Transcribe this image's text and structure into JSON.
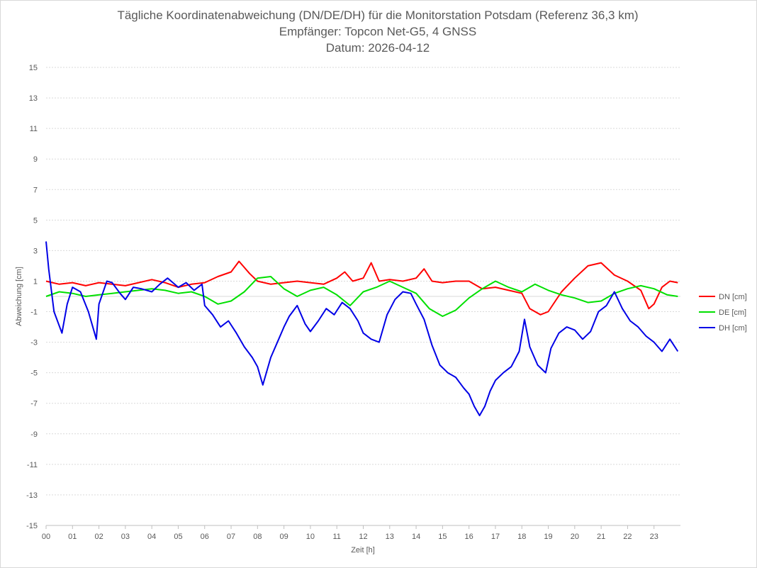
{
  "chart_data": {
    "type": "line",
    "title": "Tägliche Koordinatenabweichung (DN/DE/DH) für die Monitorstation Potsdam (Referenz 36,3 km)",
    "subtitle": "Empfänger: Topcon Net-G5, 4 GNSS",
    "subtitle2": "Datum: 2026-04-12",
    "xlabel": "Zeit [h]",
    "ylabel": "Abweichung [cm]",
    "xlim": [
      0,
      24
    ],
    "ylim": [
      -15,
      15
    ],
    "xticks": [
      "00",
      "01",
      "02",
      "03",
      "04",
      "05",
      "06",
      "07",
      "08",
      "09",
      "10",
      "11",
      "12",
      "13",
      "14",
      "15",
      "16",
      "17",
      "18",
      "19",
      "20",
      "21",
      "22",
      "23"
    ],
    "yticks": [
      15,
      13,
      11,
      9,
      7,
      5,
      3,
      1,
      -1,
      -3,
      -5,
      -7,
      -9,
      -11,
      -13,
      -15
    ],
    "grid": true,
    "legend": "right",
    "series": [
      {
        "name": "DN [cm]",
        "color": "#ff0000",
        "points": [
          [
            0,
            1.0
          ],
          [
            0.5,
            0.8
          ],
          [
            1,
            0.9
          ],
          [
            1.5,
            0.7
          ],
          [
            2,
            0.9
          ],
          [
            2.5,
            0.8
          ],
          [
            3,
            0.7
          ],
          [
            3.5,
            0.9
          ],
          [
            4,
            1.1
          ],
          [
            4.5,
            0.9
          ],
          [
            5,
            0.6
          ],
          [
            5.5,
            0.8
          ],
          [
            6,
            0.9
          ],
          [
            6.5,
            1.3
          ],
          [
            7,
            1.6
          ],
          [
            7.3,
            2.3
          ],
          [
            7.7,
            1.5
          ],
          [
            8,
            1.0
          ],
          [
            8.5,
            0.8
          ],
          [
            9,
            0.9
          ],
          [
            9.5,
            1.0
          ],
          [
            10,
            0.9
          ],
          [
            10.5,
            0.8
          ],
          [
            11,
            1.2
          ],
          [
            11.3,
            1.6
          ],
          [
            11.6,
            1.0
          ],
          [
            12,
            1.2
          ],
          [
            12.3,
            2.2
          ],
          [
            12.6,
            1.0
          ],
          [
            13,
            1.1
          ],
          [
            13.5,
            1.0
          ],
          [
            14,
            1.2
          ],
          [
            14.3,
            1.8
          ],
          [
            14.6,
            1.0
          ],
          [
            15,
            0.9
          ],
          [
            15.5,
            1.0
          ],
          [
            16,
            1.0
          ],
          [
            16.5,
            0.5
          ],
          [
            17,
            0.6
          ],
          [
            17.5,
            0.4
          ],
          [
            18,
            0.2
          ],
          [
            18.3,
            -0.8
          ],
          [
            18.7,
            -1.2
          ],
          [
            19,
            -1.0
          ],
          [
            19.5,
            0.3
          ],
          [
            20,
            1.2
          ],
          [
            20.5,
            2.0
          ],
          [
            21,
            2.2
          ],
          [
            21.5,
            1.4
          ],
          [
            22,
            1.0
          ],
          [
            22.5,
            0.4
          ],
          [
            22.8,
            -0.8
          ],
          [
            23,
            -0.5
          ],
          [
            23.3,
            0.6
          ],
          [
            23.6,
            1.0
          ],
          [
            23.9,
            0.9
          ]
        ]
      },
      {
        "name": "DE [cm]",
        "color": "#00e000",
        "points": [
          [
            0,
            0.0
          ],
          [
            0.5,
            0.3
          ],
          [
            1,
            0.2
          ],
          [
            1.5,
            0.0
          ],
          [
            2,
            0.1
          ],
          [
            2.5,
            0.2
          ],
          [
            3,
            0.3
          ],
          [
            3.5,
            0.4
          ],
          [
            4,
            0.5
          ],
          [
            4.5,
            0.4
          ],
          [
            5,
            0.2
          ],
          [
            5.5,
            0.3
          ],
          [
            6,
            0.0
          ],
          [
            6.5,
            -0.5
          ],
          [
            7,
            -0.3
          ],
          [
            7.5,
            0.3
          ],
          [
            8,
            1.2
          ],
          [
            8.5,
            1.3
          ],
          [
            9,
            0.5
          ],
          [
            9.5,
            0.0
          ],
          [
            10,
            0.4
          ],
          [
            10.5,
            0.6
          ],
          [
            11,
            0.1
          ],
          [
            11.5,
            -0.6
          ],
          [
            12,
            0.3
          ],
          [
            12.5,
            0.6
          ],
          [
            13,
            1.0
          ],
          [
            13.5,
            0.6
          ],
          [
            14,
            0.2
          ],
          [
            14.5,
            -0.8
          ],
          [
            15,
            -1.3
          ],
          [
            15.5,
            -0.9
          ],
          [
            16,
            -0.1
          ],
          [
            16.5,
            0.5
          ],
          [
            17,
            1.0
          ],
          [
            17.5,
            0.6
          ],
          [
            18,
            0.3
          ],
          [
            18.5,
            0.8
          ],
          [
            19,
            0.4
          ],
          [
            19.5,
            0.1
          ],
          [
            20,
            -0.1
          ],
          [
            20.5,
            -0.4
          ],
          [
            21,
            -0.3
          ],
          [
            21.5,
            0.2
          ],
          [
            22,
            0.5
          ],
          [
            22.5,
            0.7
          ],
          [
            23,
            0.5
          ],
          [
            23.5,
            0.1
          ],
          [
            23.9,
            0.0
          ]
        ]
      },
      {
        "name": "DH [cm]",
        "color": "#0000e6",
        "points": [
          [
            0,
            3.6
          ],
          [
            0.1,
            1.8
          ],
          [
            0.3,
            -1.0
          ],
          [
            0.6,
            -2.4
          ],
          [
            0.8,
            -0.5
          ],
          [
            1,
            0.6
          ],
          [
            1.3,
            0.3
          ],
          [
            1.6,
            -1.0
          ],
          [
            1.9,
            -2.8
          ],
          [
            2,
            -0.5
          ],
          [
            2.3,
            1.0
          ],
          [
            2.5,
            0.9
          ],
          [
            2.8,
            0.2
          ],
          [
            3,
            -0.2
          ],
          [
            3.3,
            0.6
          ],
          [
            3.6,
            0.5
          ],
          [
            4,
            0.3
          ],
          [
            4.3,
            0.8
          ],
          [
            4.6,
            1.2
          ],
          [
            5,
            0.6
          ],
          [
            5.3,
            0.9
          ],
          [
            5.6,
            0.4
          ],
          [
            5.9,
            0.8
          ],
          [
            6,
            -0.6
          ],
          [
            6.3,
            -1.2
          ],
          [
            6.6,
            -2.0
          ],
          [
            6.9,
            -1.6
          ],
          [
            7.2,
            -2.4
          ],
          [
            7.5,
            -3.3
          ],
          [
            7.8,
            -4.0
          ],
          [
            8,
            -4.6
          ],
          [
            8.2,
            -5.8
          ],
          [
            8.5,
            -4.0
          ],
          [
            8.8,
            -2.8
          ],
          [
            9,
            -2.0
          ],
          [
            9.2,
            -1.3
          ],
          [
            9.5,
            -0.6
          ],
          [
            9.8,
            -1.8
          ],
          [
            10,
            -2.3
          ],
          [
            10.3,
            -1.6
          ],
          [
            10.6,
            -0.8
          ],
          [
            10.9,
            -1.2
          ],
          [
            11.2,
            -0.4
          ],
          [
            11.5,
            -0.8
          ],
          [
            11.8,
            -1.6
          ],
          [
            12,
            -2.4
          ],
          [
            12.3,
            -2.8
          ],
          [
            12.6,
            -3.0
          ],
          [
            12.9,
            -1.2
          ],
          [
            13.2,
            -0.2
          ],
          [
            13.5,
            0.3
          ],
          [
            13.8,
            0.2
          ],
          [
            14,
            -0.5
          ],
          [
            14.3,
            -1.5
          ],
          [
            14.6,
            -3.2
          ],
          [
            14.9,
            -4.5
          ],
          [
            15.2,
            -5.0
          ],
          [
            15.5,
            -5.3
          ],
          [
            15.8,
            -6.0
          ],
          [
            16,
            -6.4
          ],
          [
            16.2,
            -7.2
          ],
          [
            16.4,
            -7.8
          ],
          [
            16.6,
            -7.2
          ],
          [
            16.8,
            -6.2
          ],
          [
            17,
            -5.5
          ],
          [
            17.3,
            -5.0
          ],
          [
            17.6,
            -4.6
          ],
          [
            17.9,
            -3.6
          ],
          [
            18.1,
            -1.5
          ],
          [
            18.3,
            -3.3
          ],
          [
            18.6,
            -4.5
          ],
          [
            18.9,
            -5.0
          ],
          [
            19.1,
            -3.4
          ],
          [
            19.4,
            -2.4
          ],
          [
            19.7,
            -2.0
          ],
          [
            20,
            -2.2
          ],
          [
            20.3,
            -2.8
          ],
          [
            20.6,
            -2.3
          ],
          [
            20.9,
            -1.0
          ],
          [
            21.2,
            -0.6
          ],
          [
            21.5,
            0.3
          ],
          [
            21.8,
            -0.8
          ],
          [
            22.1,
            -1.6
          ],
          [
            22.4,
            -2.0
          ],
          [
            22.7,
            -2.6
          ],
          [
            23,
            -3.0
          ],
          [
            23.3,
            -3.6
          ],
          [
            23.6,
            -2.8
          ],
          [
            23.9,
            -3.6
          ]
        ]
      }
    ]
  }
}
